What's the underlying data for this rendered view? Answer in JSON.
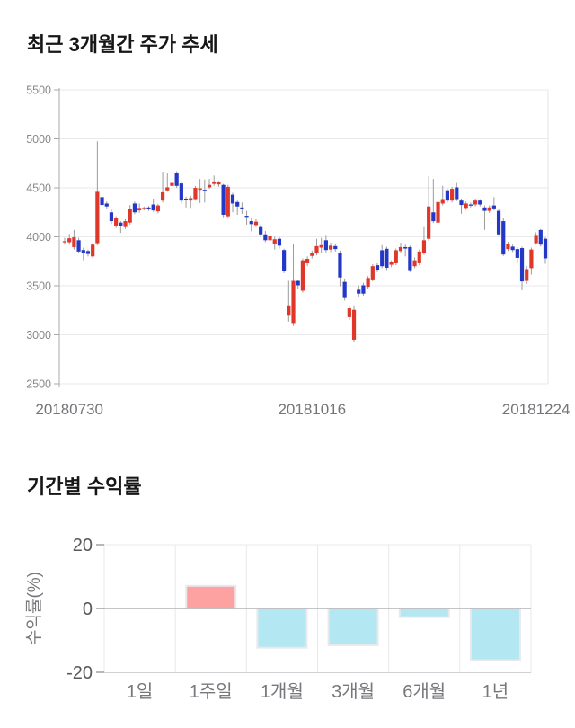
{
  "price_chart": {
    "title": "최근 3개월간 주가 추세"
  },
  "returns_chart": {
    "title": "기간별 수익률",
    "ylabel": "수익률(%)"
  },
  "chart_data": [
    {
      "type": "candlestick",
      "title": "최근 3개월간 주가 추세",
      "ylim": [
        2500,
        5500
      ],
      "y_ticks": [
        5500,
        5000,
        4500,
        4000,
        3500,
        3000,
        2500
      ],
      "x_tick_labels": [
        "20180730",
        "20181016",
        "20181224"
      ],
      "x_tick_indices": [
        1,
        53,
        101
      ],
      "grid": true,
      "colors": {
        "up": "#e0372b",
        "down": "#2438c8",
        "wick": "#9b9b9b"
      },
      "candles_format": [
        "open",
        "high",
        "low",
        "close"
      ],
      "candles": [
        [
          3950,
          3990,
          3920,
          3955
        ],
        [
          3945,
          4030,
          3920,
          3985
        ],
        [
          3895,
          4070,
          3870,
          3995
        ],
        [
          3965,
          3990,
          3830,
          3850
        ],
        [
          3865,
          3890,
          3760,
          3835
        ],
        [
          3855,
          3870,
          3800,
          3825
        ],
        [
          3800,
          3940,
          3780,
          3920
        ],
        [
          3935,
          4975,
          3915,
          4460
        ],
        [
          4405,
          4430,
          4280,
          4325
        ],
        [
          4340,
          4360,
          4290,
          4310
        ],
        [
          4250,
          4280,
          4130,
          4160
        ],
        [
          4115,
          4210,
          4090,
          4190
        ],
        [
          4145,
          4160,
          4040,
          4115
        ],
        [
          4100,
          4180,
          4080,
          4160
        ],
        [
          4145,
          4325,
          4125,
          4280
        ],
        [
          4340,
          4360,
          4230,
          4250
        ],
        [
          4270,
          4340,
          4245,
          4295
        ],
        [
          4285,
          4310,
          4270,
          4295
        ],
        [
          4300,
          4315,
          4265,
          4285
        ],
        [
          4330,
          4390,
          4255,
          4270
        ],
        [
          4260,
          4335,
          4240,
          4320
        ],
        [
          4370,
          4665,
          4350,
          4455
        ],
        [
          4475,
          4650,
          4460,
          4505
        ],
        [
          4520,
          4580,
          4500,
          4550
        ],
        [
          4655,
          4670,
          4500,
          4520
        ],
        [
          4545,
          4560,
          4340,
          4370
        ],
        [
          4390,
          4410,
          4300,
          4375
        ],
        [
          4370,
          4420,
          4295,
          4395
        ],
        [
          4385,
          4520,
          4370,
          4500
        ],
        [
          4480,
          4590,
          4345,
          4495
        ],
        [
          4480,
          4585,
          4350,
          4475
        ],
        [
          4505,
          4590,
          4490,
          4530
        ],
        [
          4540,
          4625,
          4520,
          4565
        ],
        [
          4535,
          4570,
          4510,
          4560
        ],
        [
          4530,
          4540,
          4200,
          4225
        ],
        [
          4210,
          4530,
          4195,
          4510
        ],
        [
          4430,
          4450,
          4250,
          4340
        ],
        [
          4355,
          4370,
          4225,
          4310
        ],
        [
          4300,
          4350,
          4235,
          4290
        ],
        [
          4215,
          4265,
          4125,
          4210
        ],
        [
          4160,
          4190,
          4055,
          4130
        ],
        [
          4120,
          4180,
          4100,
          4155
        ],
        [
          4100,
          4130,
          4000,
          4025
        ],
        [
          4025,
          4060,
          3945,
          3965
        ],
        [
          3965,
          4030,
          3945,
          4005
        ],
        [
          3930,
          4000,
          3870,
          3975
        ],
        [
          3980,
          4000,
          3880,
          3910
        ],
        [
          3865,
          3880,
          3630,
          3655
        ],
        [
          3195,
          3550,
          3135,
          3300
        ],
        [
          3120,
          3930,
          3090,
          3550
        ],
        [
          3550,
          3560,
          3470,
          3505
        ],
        [
          3450,
          3780,
          3430,
          3760
        ],
        [
          3730,
          3800,
          3700,
          3775
        ],
        [
          3805,
          3860,
          3780,
          3830
        ],
        [
          3830,
          3980,
          3810,
          3905
        ],
        [
          3890,
          3990,
          3835,
          3915
        ],
        [
          3965,
          4010,
          3840,
          3865
        ],
        [
          3870,
          3940,
          3845,
          3910
        ],
        [
          3905,
          3930,
          3850,
          3875
        ],
        [
          3830,
          3860,
          3495,
          3585
        ],
        [
          3540,
          3575,
          3350,
          3375
        ],
        [
          3180,
          3300,
          3150,
          3270
        ],
        [
          2950,
          3300,
          2930,
          3255
        ],
        [
          3460,
          3505,
          3390,
          3420
        ],
        [
          3505,
          3530,
          3400,
          3420
        ],
        [
          3490,
          3600,
          3470,
          3580
        ],
        [
          3565,
          3720,
          3545,
          3700
        ],
        [
          3710,
          3730,
          3640,
          3665
        ],
        [
          3863,
          3915,
          3680,
          3700
        ],
        [
          3878,
          3900,
          3660,
          3684
        ],
        [
          3715,
          3760,
          3690,
          3745
        ],
        [
          3730,
          3880,
          3710,
          3863
        ],
        [
          3855,
          3940,
          3835,
          3895
        ],
        [
          3895,
          3920,
          3800,
          3880
        ],
        [
          3895,
          3910,
          3640,
          3660
        ],
        [
          3700,
          3790,
          3680,
          3760
        ],
        [
          3730,
          3870,
          3710,
          3850
        ],
        [
          3835,
          4100,
          3815,
          3965
        ],
        [
          3980,
          4620,
          3960,
          4310
        ],
        [
          4250,
          4590,
          4140,
          4160
        ],
        [
          4145,
          4380,
          4125,
          4355
        ],
        [
          4340,
          4520,
          4320,
          4385
        ],
        [
          4475,
          4490,
          4350,
          4370
        ],
        [
          4370,
          4510,
          4350,
          4490
        ],
        [
          4505,
          4550,
          4365,
          4385
        ],
        [
          4370,
          4390,
          4235,
          4325
        ],
        [
          4295,
          4360,
          4275,
          4340
        ],
        [
          4330,
          4350,
          4300,
          4320
        ],
        [
          4330,
          4390,
          4310,
          4370
        ],
        [
          4370,
          4385,
          4310,
          4330
        ],
        [
          4300,
          4320,
          4070,
          4265
        ],
        [
          4265,
          4320,
          4245,
          4300
        ],
        [
          4320,
          4405,
          4270,
          4290
        ],
        [
          4265,
          4280,
          4010,
          4025
        ],
        [
          4160,
          4190,
          3805,
          3820
        ],
        [
          3875,
          3950,
          3855,
          3925
        ],
        [
          3900,
          3920,
          3845,
          3865
        ],
        [
          3875,
          3895,
          3730,
          3785
        ],
        [
          3885,
          3900,
          3455,
          3545
        ],
        [
          3550,
          3700,
          3520,
          3670
        ],
        [
          3680,
          3890,
          3615,
          3870
        ],
        [
          3935,
          4045,
          3920,
          4010
        ],
        [
          4070,
          4080,
          3900,
          3920
        ],
        [
          3980,
          3995,
          3725,
          3780
        ]
      ]
    },
    {
      "type": "bar",
      "title": "기간별 수익률",
      "ylabel": "수익률(%)",
      "categories": [
        "1일",
        "1주일",
        "1개월",
        "3개월",
        "6개월",
        "1년"
      ],
      "values": [
        0,
        7.1,
        -12.3,
        -11.5,
        -2.7,
        -16.2
      ],
      "ylim": [
        -20,
        20
      ],
      "y_ticks": [
        20,
        0,
        -20
      ],
      "grid": true,
      "colors": {
        "positive": "#fda1a1",
        "negative": "#b3e8f2",
        "bar_border": "#e9e9ed"
      }
    }
  ]
}
